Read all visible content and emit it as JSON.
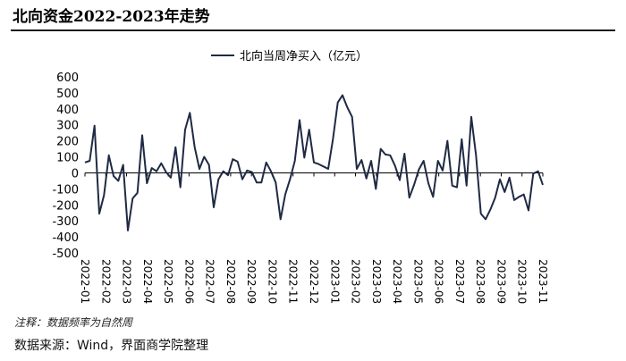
{
  "header": {
    "title": "北向资金2022-2023年走势"
  },
  "footer": {
    "note": "注释：数据频率为自然周",
    "source": "数据来源：Wind，界面商学院整理"
  },
  "chart_data": {
    "type": "line",
    "legend": {
      "position": "top-center"
    },
    "ylim": [
      -500,
      600
    ],
    "yticks": [
      -500,
      -400,
      -300,
      -200,
      -100,
      0,
      100,
      200,
      300,
      400,
      500,
      600
    ],
    "grid": false,
    "x_tick_labels": [
      "2022-01",
      "2022-02",
      "2022-03",
      "2022-04",
      "2022-05",
      "2022-06",
      "2022-07",
      "2022-08",
      "2022-09",
      "2022-10",
      "2022-11",
      "2022-12",
      "2023-01",
      "2023-02",
      "2023-03",
      "2023-04",
      "2023-05",
      "2023-06",
      "2023-07",
      "2023-08",
      "2023-09",
      "2023-10",
      "2023-11"
    ],
    "series": [
      {
        "name": "北向当周净买入（亿元）",
        "color": "#1f2a44",
        "values": [
          65,
          75,
          295,
          -255,
          -140,
          110,
          -20,
          -50,
          50,
          -360,
          -160,
          -125,
          235,
          -65,
          30,
          10,
          60,
          5,
          -30,
          160,
          -90,
          270,
          375,
          160,
          25,
          100,
          50,
          -215,
          -40,
          10,
          -15,
          85,
          70,
          -40,
          15,
          5,
          -60,
          -60,
          65,
          10,
          -60,
          -290,
          -135,
          -40,
          75,
          330,
          95,
          270,
          65,
          55,
          40,
          25,
          210,
          440,
          485,
          410,
          350,
          25,
          80,
          -35,
          75,
          -100,
          150,
          115,
          110,
          45,
          -45,
          120,
          -155,
          -75,
          20,
          75,
          -65,
          -150,
          75,
          15,
          200,
          -80,
          -90,
          210,
          -80,
          350,
          110,
          -255,
          -290,
          -230,
          -155,
          -40,
          -120,
          -30,
          -170,
          -150,
          -135,
          -235,
          -5,
          10,
          -75
        ]
      }
    ]
  }
}
